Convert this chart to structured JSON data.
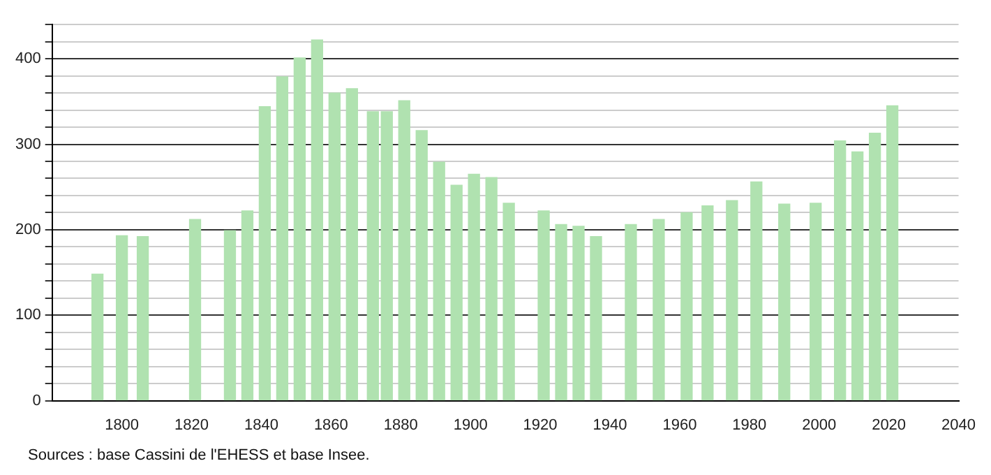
{
  "chart_data": {
    "type": "bar",
    "annotations": [
      "Sources : base Cassini de l'EHESS et base Insee."
    ],
    "x": [
      1793,
      1800,
      1806,
      1821,
      1831,
      1836,
      1841,
      1846,
      1851,
      1856,
      1861,
      1866,
      1872,
      1876,
      1881,
      1886,
      1891,
      1896,
      1901,
      1906,
      1911,
      1921,
      1926,
      1931,
      1936,
      1946,
      1954,
      1962,
      1968,
      1975,
      1982,
      1990,
      1999,
      2006,
      2011,
      2016,
      2021
    ],
    "values": [
      148,
      193,
      192,
      212,
      199,
      222,
      344,
      379,
      401,
      422,
      360,
      365,
      338,
      338,
      351,
      316,
      279,
      252,
      265,
      261,
      231,
      222,
      206,
      204,
      192,
      206,
      212,
      220,
      228,
      234,
      256,
      230,
      231,
      304,
      291,
      313,
      345
    ],
    "color": "#b0e2b0",
    "xlim": [
      1780,
      2040
    ],
    "xticks": [
      1800,
      1820,
      1840,
      1860,
      1880,
      1900,
      1920,
      1940,
      1960,
      1980,
      2000,
      2020,
      2040
    ],
    "ylim": [
      0,
      440
    ],
    "yticks": [
      0,
      {
        "value": 20,
        "label": null
      },
      {
        "value": 40,
        "label": null
      },
      {
        "value": 60,
        "label": null
      },
      {
        "value": 80,
        "label": null
      },
      100,
      {
        "value": 120,
        "label": null
      },
      {
        "value": 140,
        "label": null
      },
      {
        "value": 160,
        "label": null
      },
      {
        "value": 180,
        "label": null
      },
      200,
      {
        "value": 220,
        "label": null
      },
      {
        "value": 240,
        "label": null
      },
      {
        "value": 260,
        "label": null
      },
      {
        "value": 280,
        "label": null
      },
      300,
      {
        "value": 320,
        "label": null
      },
      {
        "value": 340,
        "label": null
      },
      {
        "value": 360,
        "label": null
      },
      {
        "value": 380,
        "label": null
      },
      400,
      {
        "value": 420,
        "label": null
      },
      {
        "value": 440,
        "label": null
      }
    ],
    "grid": "y"
  }
}
